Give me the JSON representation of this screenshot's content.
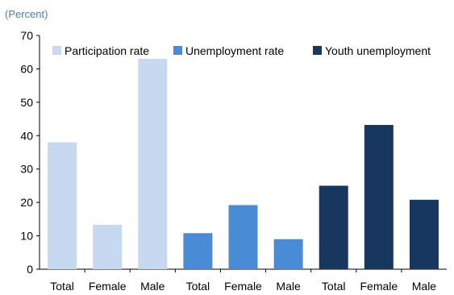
{
  "unit_label": "(Percent)",
  "chart_data": {
    "type": "bar",
    "title": "",
    "xlabel": "",
    "ylabel": "",
    "ylim": [
      0,
      70
    ],
    "yticks": [
      0,
      10,
      20,
      30,
      40,
      50,
      60,
      70
    ],
    "grid": false,
    "legend_position": "top",
    "categories": [
      "Total",
      "Female",
      "Male",
      "Total",
      "Female",
      "Male",
      "Total",
      "Female",
      "Male"
    ],
    "series": [
      {
        "name": "Participation rate",
        "color": "#c6d9f1",
        "values": [
          38,
          13.3,
          63,
          null,
          null,
          null,
          null,
          null,
          null
        ]
      },
      {
        "name": "Unemployment rate",
        "color": "#4a8bd6",
        "values": [
          null,
          null,
          null,
          10.8,
          19.2,
          9,
          null,
          null,
          null
        ]
      },
      {
        "name": "Youth unemployment",
        "color": "#17375e",
        "values": [
          null,
          null,
          null,
          null,
          null,
          null,
          25,
          43.2,
          20.8
        ]
      }
    ]
  }
}
